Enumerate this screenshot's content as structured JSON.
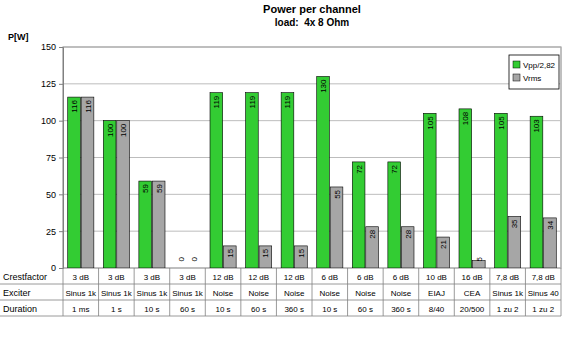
{
  "chart_data": {
    "type": "bar",
    "title": "Power per channel",
    "subtitle": "load:  4x 8 Ohm",
    "y_label": "P[W]",
    "row_labels": [
      "Crestfactor",
      "Exciter",
      "Duration"
    ],
    "categories": [
      [
        "3 dB",
        "Sinus 1k",
        "1 ms"
      ],
      [
        "3 dB",
        "Sinus 1k",
        "1 s"
      ],
      [
        "3 dB",
        "Sinus 1k",
        "10 s"
      ],
      [
        "3 dB",
        "Sinus 1k",
        "60 s"
      ],
      [
        "12 dB",
        "Noise",
        "10 s"
      ],
      [
        "12 dB",
        "Noise",
        "60 s"
      ],
      [
        "12 dB",
        "Noise",
        "360 s"
      ],
      [
        "6 dB",
        "Noise",
        "10 s"
      ],
      [
        "6 dB",
        "Noise",
        "60 s"
      ],
      [
        "6 dB",
        "Noise",
        "360 s"
      ],
      [
        "10 dB",
        "EIAJ",
        "8/40"
      ],
      [
        "16 dB",
        "CEA",
        "20/500"
      ],
      [
        "7,8 dB",
        "Sinus 1k",
        "1 zu 2"
      ],
      [
        "7,8 dB",
        "Sinus 40",
        "1 zu 2"
      ]
    ],
    "series": [
      {
        "name": "Vpp/2,82",
        "color": "#33cc33",
        "values": [
          116,
          100,
          59,
          0,
          119,
          119,
          119,
          130,
          72,
          72,
          105,
          108,
          105,
          103
        ]
      },
      {
        "name": "Vrms",
        "color": "#a6a6a6",
        "values": [
          116,
          100,
          59,
          0,
          15,
          15,
          15,
          55,
          28,
          28,
          21,
          5,
          35,
          34
        ]
      }
    ],
    "ylim": [
      0,
      150
    ],
    "yticks": [
      0,
      25,
      50,
      75,
      100,
      125,
      150
    ],
    "grid": true,
    "legend": "top-right",
    "data_labels": true
  }
}
